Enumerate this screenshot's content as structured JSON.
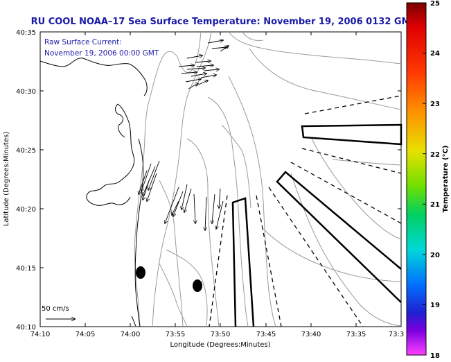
{
  "title": "RU COOL  NOAA–17  Sea Surface Temperature:  November 19, 2006 0132 GMT",
  "annotation": {
    "line1": "Raw Surface Current:",
    "line2": "November 19, 2006 00:00 GMT"
  },
  "scale_label": "50 cm/s",
  "axes": {
    "x_label": "Longitude (Degrees:Minutes)",
    "y_label": "Latitude (Degrees:Minutes)",
    "x_ticks": [
      "74:10",
      "74:05",
      "74:00",
      "73:55",
      "73:50",
      "73:45",
      "73:40",
      "73:35",
      "73:3"
    ],
    "y_ticks": [
      "40:35",
      "40:30",
      "40:25",
      "40:20",
      "40:15",
      "40:10"
    ]
  },
  "colorbar": {
    "label": "Temperature (°C)",
    "ticks": [
      "25",
      "24",
      "23",
      "22",
      "21",
      "20",
      "19",
      "18"
    ],
    "range": [
      18,
      25
    ]
  },
  "colors": {
    "title": "#1a1aa8",
    "annotation": "#1a1aa8",
    "contour": "#9a9a9a",
    "coast": "#000000"
  }
}
